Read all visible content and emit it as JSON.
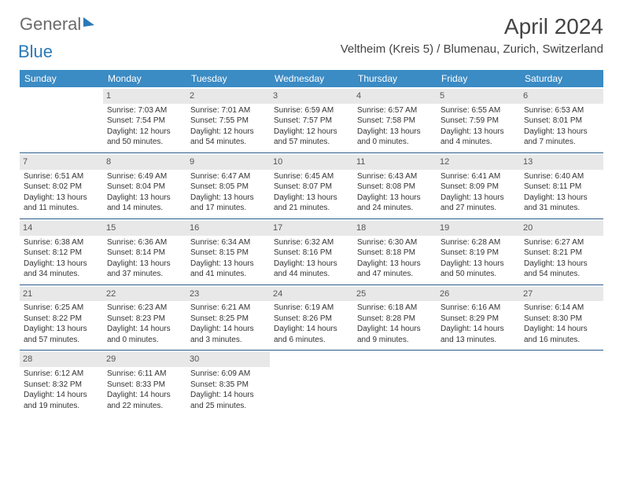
{
  "logo": {
    "part1": "General",
    "part2": "Blue"
  },
  "title": "April 2024",
  "location": "Veltheim (Kreis 5) / Blumenau, Zurich, Switzerland",
  "weekdays": [
    "Sunday",
    "Monday",
    "Tuesday",
    "Wednesday",
    "Thursday",
    "Friday",
    "Saturday"
  ],
  "header_bg": "#3b8bc4",
  "header_fg": "#ffffff",
  "daynum_bg": "#e8e8e8",
  "rule_color": "#2a5a8a",
  "text_color": "#333333",
  "font_size_title": 28,
  "font_size_location": 15,
  "font_size_header": 12,
  "font_size_body": 10,
  "weeks": [
    [
      {
        "n": "",
        "sr": "",
        "ss": "",
        "dl": ""
      },
      {
        "n": "1",
        "sr": "Sunrise: 7:03 AM",
        "ss": "Sunset: 7:54 PM",
        "dl": "Daylight: 12 hours and 50 minutes."
      },
      {
        "n": "2",
        "sr": "Sunrise: 7:01 AM",
        "ss": "Sunset: 7:55 PM",
        "dl": "Daylight: 12 hours and 54 minutes."
      },
      {
        "n": "3",
        "sr": "Sunrise: 6:59 AM",
        "ss": "Sunset: 7:57 PM",
        "dl": "Daylight: 12 hours and 57 minutes."
      },
      {
        "n": "4",
        "sr": "Sunrise: 6:57 AM",
        "ss": "Sunset: 7:58 PM",
        "dl": "Daylight: 13 hours and 0 minutes."
      },
      {
        "n": "5",
        "sr": "Sunrise: 6:55 AM",
        "ss": "Sunset: 7:59 PM",
        "dl": "Daylight: 13 hours and 4 minutes."
      },
      {
        "n": "6",
        "sr": "Sunrise: 6:53 AM",
        "ss": "Sunset: 8:01 PM",
        "dl": "Daylight: 13 hours and 7 minutes."
      }
    ],
    [
      {
        "n": "7",
        "sr": "Sunrise: 6:51 AM",
        "ss": "Sunset: 8:02 PM",
        "dl": "Daylight: 13 hours and 11 minutes."
      },
      {
        "n": "8",
        "sr": "Sunrise: 6:49 AM",
        "ss": "Sunset: 8:04 PM",
        "dl": "Daylight: 13 hours and 14 minutes."
      },
      {
        "n": "9",
        "sr": "Sunrise: 6:47 AM",
        "ss": "Sunset: 8:05 PM",
        "dl": "Daylight: 13 hours and 17 minutes."
      },
      {
        "n": "10",
        "sr": "Sunrise: 6:45 AM",
        "ss": "Sunset: 8:07 PM",
        "dl": "Daylight: 13 hours and 21 minutes."
      },
      {
        "n": "11",
        "sr": "Sunrise: 6:43 AM",
        "ss": "Sunset: 8:08 PM",
        "dl": "Daylight: 13 hours and 24 minutes."
      },
      {
        "n": "12",
        "sr": "Sunrise: 6:41 AM",
        "ss": "Sunset: 8:09 PM",
        "dl": "Daylight: 13 hours and 27 minutes."
      },
      {
        "n": "13",
        "sr": "Sunrise: 6:40 AM",
        "ss": "Sunset: 8:11 PM",
        "dl": "Daylight: 13 hours and 31 minutes."
      }
    ],
    [
      {
        "n": "14",
        "sr": "Sunrise: 6:38 AM",
        "ss": "Sunset: 8:12 PM",
        "dl": "Daylight: 13 hours and 34 minutes."
      },
      {
        "n": "15",
        "sr": "Sunrise: 6:36 AM",
        "ss": "Sunset: 8:14 PM",
        "dl": "Daylight: 13 hours and 37 minutes."
      },
      {
        "n": "16",
        "sr": "Sunrise: 6:34 AM",
        "ss": "Sunset: 8:15 PM",
        "dl": "Daylight: 13 hours and 41 minutes."
      },
      {
        "n": "17",
        "sr": "Sunrise: 6:32 AM",
        "ss": "Sunset: 8:16 PM",
        "dl": "Daylight: 13 hours and 44 minutes."
      },
      {
        "n": "18",
        "sr": "Sunrise: 6:30 AM",
        "ss": "Sunset: 8:18 PM",
        "dl": "Daylight: 13 hours and 47 minutes."
      },
      {
        "n": "19",
        "sr": "Sunrise: 6:28 AM",
        "ss": "Sunset: 8:19 PM",
        "dl": "Daylight: 13 hours and 50 minutes."
      },
      {
        "n": "20",
        "sr": "Sunrise: 6:27 AM",
        "ss": "Sunset: 8:21 PM",
        "dl": "Daylight: 13 hours and 54 minutes."
      }
    ],
    [
      {
        "n": "21",
        "sr": "Sunrise: 6:25 AM",
        "ss": "Sunset: 8:22 PM",
        "dl": "Daylight: 13 hours and 57 minutes."
      },
      {
        "n": "22",
        "sr": "Sunrise: 6:23 AM",
        "ss": "Sunset: 8:23 PM",
        "dl": "Daylight: 14 hours and 0 minutes."
      },
      {
        "n": "23",
        "sr": "Sunrise: 6:21 AM",
        "ss": "Sunset: 8:25 PM",
        "dl": "Daylight: 14 hours and 3 minutes."
      },
      {
        "n": "24",
        "sr": "Sunrise: 6:19 AM",
        "ss": "Sunset: 8:26 PM",
        "dl": "Daylight: 14 hours and 6 minutes."
      },
      {
        "n": "25",
        "sr": "Sunrise: 6:18 AM",
        "ss": "Sunset: 8:28 PM",
        "dl": "Daylight: 14 hours and 9 minutes."
      },
      {
        "n": "26",
        "sr": "Sunrise: 6:16 AM",
        "ss": "Sunset: 8:29 PM",
        "dl": "Daylight: 14 hours and 13 minutes."
      },
      {
        "n": "27",
        "sr": "Sunrise: 6:14 AM",
        "ss": "Sunset: 8:30 PM",
        "dl": "Daylight: 14 hours and 16 minutes."
      }
    ],
    [
      {
        "n": "28",
        "sr": "Sunrise: 6:12 AM",
        "ss": "Sunset: 8:32 PM",
        "dl": "Daylight: 14 hours and 19 minutes."
      },
      {
        "n": "29",
        "sr": "Sunrise: 6:11 AM",
        "ss": "Sunset: 8:33 PM",
        "dl": "Daylight: 14 hours and 22 minutes."
      },
      {
        "n": "30",
        "sr": "Sunrise: 6:09 AM",
        "ss": "Sunset: 8:35 PM",
        "dl": "Daylight: 14 hours and 25 minutes."
      },
      {
        "n": "",
        "sr": "",
        "ss": "",
        "dl": ""
      },
      {
        "n": "",
        "sr": "",
        "ss": "",
        "dl": ""
      },
      {
        "n": "",
        "sr": "",
        "ss": "",
        "dl": ""
      },
      {
        "n": "",
        "sr": "",
        "ss": "",
        "dl": ""
      }
    ]
  ]
}
